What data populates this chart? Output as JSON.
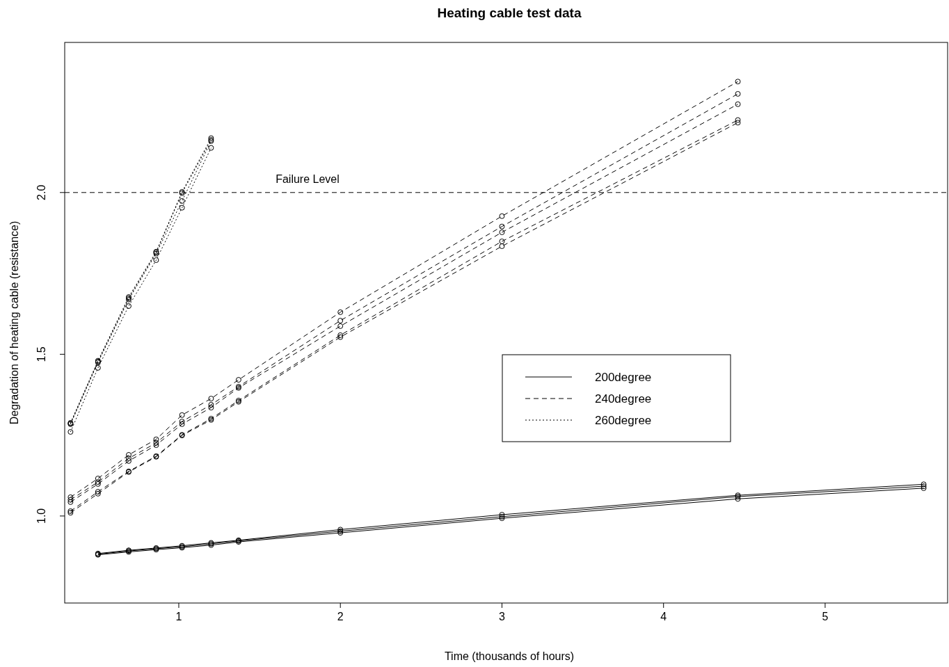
{
  "chart_data": {
    "type": "line",
    "title": "Heating cable test data",
    "xlabel": "Time (thousands of hours)",
    "ylabel": "Degradation of heating cable (resistance)",
    "xlim": [
      0.294,
      5.758
    ],
    "xticks": [
      1,
      2,
      3,
      4,
      5
    ],
    "ylim": [
      0.731,
      2.464
    ],
    "yticks": [
      {
        "value": 1,
        "label": "1.0"
      },
      {
        "value": 1.5,
        "label": "1.5"
      },
      {
        "value": 2,
        "label": "2.0"
      }
    ],
    "grid": false,
    "legend": "right",
    "marker": "circle",
    "ref_lines": [
      {
        "axis": "y",
        "value": 2,
        "label": "Failure Level",
        "line_style": "dashed",
        "color": "#000000"
      }
    ],
    "series": [
      {
        "name": "200degree",
        "color": "#000000",
        "line_style": "solid",
        "x": [
          0.5,
          0.69,
          0.86,
          1.02,
          1.2,
          1.37,
          2.0,
          3.0,
          4.46,
          5.61
        ],
        "values": [
          0.884,
          0.894,
          0.901,
          0.908,
          0.917,
          0.925,
          0.958,
          1.004,
          1.064,
          1.098
        ]
      },
      {
        "color": "#000000",
        "line_style": "solid",
        "x": [
          0.5,
          0.69,
          0.86,
          1.02,
          1.2,
          1.37,
          2.0,
          3.0,
          4.46,
          5.61
        ],
        "values": [
          0.882,
          0.892,
          0.899,
          0.905,
          0.914,
          0.923,
          0.953,
          0.998,
          1.06,
          1.092
        ]
      },
      {
        "color": "#000000",
        "line_style": "solid",
        "x": [
          0.5,
          0.69,
          0.86,
          1.02,
          1.2,
          1.37,
          2.0,
          3.0,
          4.46,
          5.61
        ],
        "values": [
          0.88,
          0.889,
          0.896,
          0.902,
          0.91,
          0.92,
          0.948,
          0.993,
          1.053,
          1.086
        ]
      },
      {
        "name": "240degree",
        "color": "#000000",
        "line_style": "dashed",
        "x": [
          0.33,
          0.5,
          0.69,
          0.86,
          1.02,
          1.2,
          1.37,
          2.0,
          3.0,
          4.46
        ],
        "values": [
          1.058,
          1.116,
          1.189,
          1.237,
          1.312,
          1.363,
          1.421,
          1.63,
          1.927,
          2.343
        ]
      },
      {
        "color": "#000000",
        "line_style": "dashed",
        "x": [
          0.33,
          0.5,
          0.69,
          0.86,
          1.02,
          1.2,
          1.37,
          2.0,
          3.0,
          4.46
        ],
        "values": [
          1.05,
          1.105,
          1.178,
          1.226,
          1.292,
          1.344,
          1.4,
          1.604,
          1.895,
          2.305
        ]
      },
      {
        "color": "#000000",
        "line_style": "dashed",
        "x": [
          0.33,
          0.5,
          0.69,
          0.86,
          1.02,
          1.2,
          1.37,
          2.0,
          3.0,
          4.46
        ],
        "values": [
          1.043,
          1.099,
          1.17,
          1.219,
          1.284,
          1.335,
          1.396,
          1.587,
          1.877,
          2.273
        ]
      },
      {
        "color": "#000000",
        "line_style": "dashed",
        "x": [
          0.33,
          0.5,
          0.69,
          0.86,
          1.02,
          1.2,
          1.37,
          2.0,
          3.0,
          4.46
        ],
        "values": [
          1.015,
          1.075,
          1.138,
          1.185,
          1.251,
          1.301,
          1.357,
          1.559,
          1.849,
          2.224
        ]
      },
      {
        "color": "#000000",
        "line_style": "dashed",
        "x": [
          0.33,
          0.5,
          0.69,
          0.86,
          1.02,
          1.2,
          1.37,
          2.0,
          3.0,
          4.46
        ],
        "values": [
          1.01,
          1.069,
          1.136,
          1.183,
          1.249,
          1.297,
          1.353,
          1.553,
          1.834,
          2.216
        ]
      },
      {
        "name": "260degree",
        "color": "#000000",
        "line_style": "dotted",
        "x": [
          0.33,
          0.5,
          0.69,
          0.86,
          1.02,
          1.2
        ],
        "values": [
          1.288,
          1.48,
          1.677,
          1.817,
          2.002,
          2.168
        ]
      },
      {
        "color": "#000000",
        "line_style": "dotted",
        "x": [
          0.33,
          0.5,
          0.69,
          0.86,
          1.02,
          1.2
        ],
        "values": [
          1.286,
          1.477,
          1.673,
          1.815,
          1.998,
          2.163
        ]
      },
      {
        "color": "#000000",
        "line_style": "dotted",
        "x": [
          0.33,
          0.5,
          0.69,
          0.86,
          1.02,
          1.2
        ],
        "values": [
          1.284,
          1.475,
          1.669,
          1.811,
          1.974,
          2.159
        ]
      },
      {
        "color": "#000000",
        "line_style": "dotted",
        "x": [
          0.33,
          0.5,
          0.69,
          0.86,
          1.02,
          1.2
        ],
        "values": [
          1.26,
          1.458,
          1.649,
          1.791,
          1.953,
          2.138
        ]
      }
    ]
  }
}
